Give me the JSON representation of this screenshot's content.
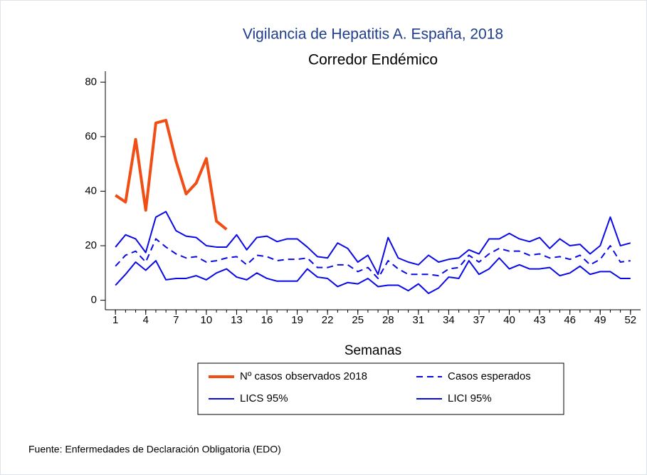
{
  "chart_data": {
    "type": "line",
    "title": "Vigilancia de Hepatitis A. España, 2018",
    "subtitle": "Corredor Endémico",
    "x_label": "Semanas",
    "note": "Fuente: Enfermedades de Declaración Obligatoria (EDO)",
    "x": [
      1,
      2,
      3,
      4,
      5,
      6,
      7,
      8,
      9,
      10,
      11,
      12,
      13,
      14,
      15,
      16,
      17,
      18,
      19,
      20,
      21,
      22,
      23,
      24,
      25,
      26,
      27,
      28,
      29,
      30,
      31,
      32,
      33,
      34,
      35,
      36,
      37,
      38,
      39,
      40,
      41,
      42,
      43,
      44,
      45,
      46,
      47,
      48,
      49,
      50,
      51,
      52
    ],
    "xlim": [
      0,
      53
    ],
    "xticks": [
      1,
      4,
      7,
      10,
      13,
      16,
      19,
      22,
      25,
      28,
      31,
      34,
      37,
      40,
      43,
      46,
      49,
      52
    ],
    "ylim": [
      -3.5,
      84
    ],
    "yticks": [
      0,
      20,
      40,
      60,
      80
    ],
    "grid": false,
    "legend": "bottom",
    "series": [
      {
        "name": "Nº casos observados 2018",
        "color": "#f04e14",
        "width": 4,
        "dash": false,
        "values": [
          38.5,
          36,
          59,
          33,
          65,
          66,
          51,
          39,
          43,
          52,
          29,
          26,
          null,
          null,
          null,
          null,
          null,
          null,
          null,
          null,
          null,
          null,
          null,
          null,
          null,
          null,
          null,
          null,
          null,
          null,
          null,
          null,
          null,
          null,
          null,
          null,
          null,
          null,
          null,
          null,
          null,
          null,
          null,
          null,
          null,
          null,
          null,
          null,
          null,
          null,
          null,
          null
        ]
      },
      {
        "name": "Casos esperados",
        "color": "#0a0ae6",
        "width": 2,
        "dash": true,
        "values": [
          12.5,
          16.5,
          18,
          14,
          22.5,
          19.5,
          17,
          15.5,
          16,
          14,
          14.5,
          15.5,
          16,
          13,
          16.5,
          16,
          14.5,
          15,
          15,
          15.5,
          12,
          12,
          13,
          13,
          10.5,
          12,
          8,
          14.5,
          11.5,
          9.5,
          9.5,
          9.5,
          9,
          11.5,
          12,
          16.5,
          14,
          17,
          19,
          18,
          18,
          16.5,
          17,
          15.5,
          16,
          15,
          16.5,
          13,
          15,
          20,
          14,
          14.5
        ]
      },
      {
        "name": "LICS 95%",
        "color": "#0a0ae6",
        "width": 2,
        "dash": false,
        "values": [
          19.5,
          24,
          22.5,
          17.5,
          30.5,
          32.5,
          25.5,
          23.5,
          23,
          20,
          19.5,
          19.5,
          24,
          18.5,
          23,
          23.5,
          21.5,
          22.5,
          22.5,
          19.5,
          16,
          15.5,
          21,
          19,
          14,
          16.5,
          9.5,
          23,
          15.5,
          14,
          13,
          16.5,
          14,
          15,
          15.5,
          18.5,
          17,
          22.5,
          22.5,
          24.5,
          22.5,
          21.5,
          23,
          19,
          22.5,
          20,
          20.5,
          17,
          20,
          30.5,
          20,
          21
        ]
      },
      {
        "name": "LICI 95%",
        "color": "#0a0ae6",
        "width": 2,
        "dash": false,
        "values": [
          5.5,
          9.5,
          14,
          11,
          14.5,
          7.5,
          8,
          8,
          9,
          7.5,
          10,
          11.5,
          8.5,
          7.5,
          10,
          8,
          7,
          7,
          7,
          11.5,
          8.5,
          8,
          5,
          6.5,
          6,
          8,
          5,
          5.5,
          5.5,
          3.5,
          6,
          2.5,
          4.5,
          8.5,
          8,
          14.5,
          9.5,
          11.5,
          15.5,
          11.5,
          13,
          11.5,
          11.5,
          12,
          9,
          10,
          12.5,
          9.5,
          10.5,
          10.5,
          8,
          8
        ]
      }
    ]
  }
}
